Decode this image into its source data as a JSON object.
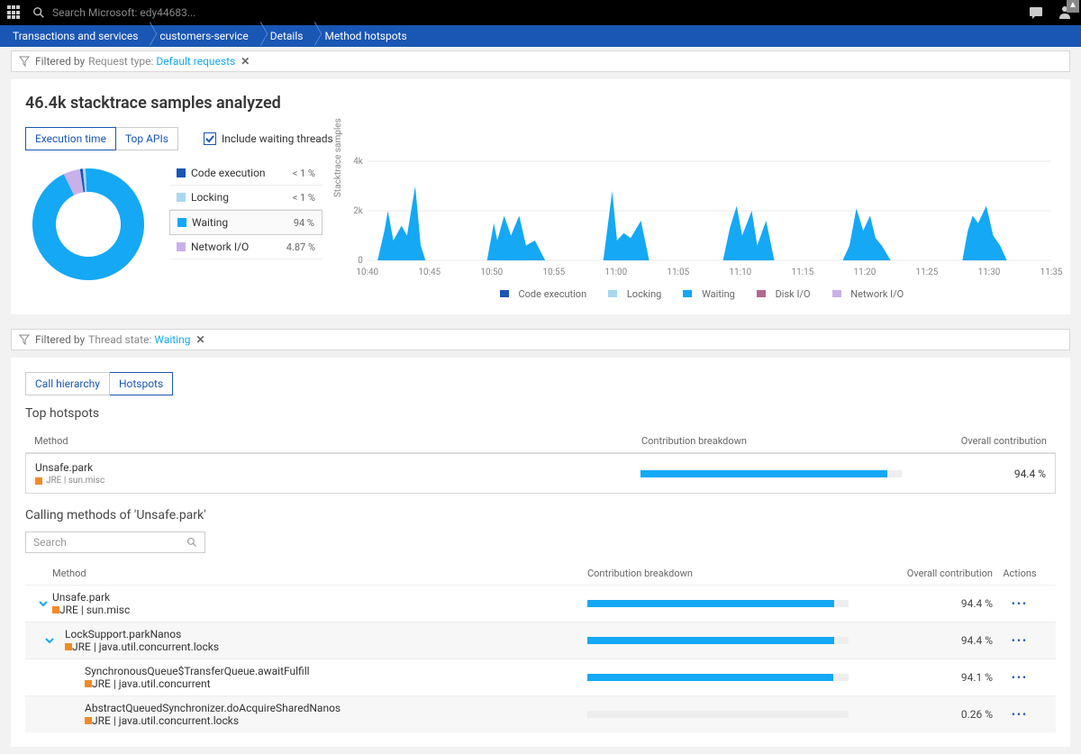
{
  "topbar": {
    "search_placeholder": "Search Microsoft: edy44683..."
  },
  "breadcrumbs": [
    "Transactions and services",
    "customers-service",
    "Details",
    "Method hotspots"
  ],
  "filter1": {
    "prefix": "Filtered by",
    "name": "Request type:",
    "value": "Default requests"
  },
  "page_title": "46.4k stacktrace samples analyzed",
  "tabs": {
    "execution": "Execution time",
    "topapis": "Top APIs"
  },
  "include_waiting_label": "Include waiting threads",
  "donut": {
    "values": [
      0.8,
      0.8,
      94,
      4.87
    ],
    "colors": [
      "#1a56b4",
      "#a8d8f0",
      "#14a8f5",
      "#c8b0e8"
    ],
    "background": "#fff"
  },
  "legend_items": [
    {
      "label": "Code execution",
      "pct": "< 1 %",
      "color": "#1a56b4"
    },
    {
      "label": "Locking",
      "pct": "< 1 %",
      "color": "#a8d8f0"
    },
    {
      "label": "Waiting",
      "pct": "94 %",
      "color": "#14a8f5",
      "selected": true
    },
    {
      "label": "Network I/O",
      "pct": "4.87 %",
      "color": "#c8b0e8"
    }
  ],
  "timeline": {
    "y_label": "Stacktrace samples",
    "y_ticks": [
      "0",
      "2k",
      "4k"
    ],
    "y_max": 4000,
    "x_labels": [
      "10:40",
      "10:45",
      "10:50",
      "10:55",
      "11:00",
      "11:05",
      "11:10",
      "11:15",
      "11:20",
      "11:25",
      "11:30",
      "11:35"
    ],
    "area_color": "#14a8f5",
    "grid_color": "#e8e8e8",
    "pink_color": "#e8a8d8",
    "peaks": [
      [
        [
          0.015,
          0
        ],
        [
          0.025,
          1200
        ],
        [
          0.03,
          2000
        ],
        [
          0.038,
          800
        ],
        [
          0.05,
          1400
        ],
        [
          0.058,
          1000
        ],
        [
          0.07,
          3000
        ],
        [
          0.078,
          600
        ],
        [
          0.085,
          0
        ]
      ],
      [
        [
          0.175,
          0
        ],
        [
          0.185,
          1500
        ],
        [
          0.19,
          800
        ],
        [
          0.2,
          1800
        ],
        [
          0.21,
          1000
        ],
        [
          0.222,
          1800
        ],
        [
          0.232,
          600
        ],
        [
          0.245,
          800
        ],
        [
          0.26,
          0
        ]
      ],
      [
        [
          0.345,
          0
        ],
        [
          0.358,
          2800
        ],
        [
          0.365,
          800
        ],
        [
          0.375,
          1100
        ],
        [
          0.385,
          900
        ],
        [
          0.4,
          1600
        ],
        [
          0.412,
          0
        ]
      ],
      [
        [
          0.52,
          0
        ],
        [
          0.53,
          1300
        ],
        [
          0.54,
          2200
        ],
        [
          0.548,
          1000
        ],
        [
          0.562,
          2000
        ],
        [
          0.57,
          600
        ],
        [
          0.583,
          1600
        ],
        [
          0.595,
          0
        ]
      ],
      [
        [
          0.695,
          0
        ],
        [
          0.705,
          600
        ],
        [
          0.715,
          2100
        ],
        [
          0.725,
          1200
        ],
        [
          0.735,
          1800
        ],
        [
          0.743,
          900
        ],
        [
          0.752,
          600
        ],
        [
          0.765,
          0
        ]
      ],
      [
        [
          0.87,
          0
        ],
        [
          0.878,
          1200
        ],
        [
          0.885,
          1800
        ],
        [
          0.893,
          1500
        ],
        [
          0.905,
          2200
        ],
        [
          0.915,
          1000
        ],
        [
          0.925,
          600
        ],
        [
          0.935,
          0
        ]
      ]
    ],
    "pink_peaks": [
      [
        [
          0.03,
          0
        ],
        [
          0.06,
          160
        ],
        [
          0.085,
          0
        ]
      ],
      [
        [
          0.19,
          0
        ],
        [
          0.22,
          120
        ],
        [
          0.255,
          0
        ]
      ],
      [
        [
          0.36,
          0
        ],
        [
          0.38,
          140
        ],
        [
          0.405,
          0
        ]
      ],
      [
        [
          0.53,
          0
        ],
        [
          0.56,
          130
        ],
        [
          0.59,
          0
        ]
      ],
      [
        [
          0.71,
          0
        ],
        [
          0.735,
          120
        ],
        [
          0.76,
          0
        ]
      ],
      [
        [
          0.88,
          0
        ],
        [
          0.91,
          140
        ],
        [
          0.93,
          0
        ]
      ]
    ]
  },
  "timeline_legend": [
    {
      "label": "Code execution",
      "color": "#1a56b4"
    },
    {
      "label": "Locking",
      "color": "#a8d8f0"
    },
    {
      "label": "Waiting",
      "color": "#14a8f5"
    },
    {
      "label": "Disk I/O",
      "color": "#b06890"
    },
    {
      "label": "Network I/O",
      "color": "#c8b0e8"
    }
  ],
  "filter2": {
    "prefix": "Filtered by",
    "name": "Thread state:",
    "value": "Waiting"
  },
  "view_tabs": {
    "call_hierarchy": "Call hierarchy",
    "hotspots": "Hotspots"
  },
  "top_hotspots_title": "Top hotspots",
  "hotspot_headers": {
    "method": "Method",
    "contrib": "Contribution breakdown",
    "overall": "Overall contribution"
  },
  "top_hotspot": {
    "name": "Unsafe.park",
    "sub": "JRE | sun.misc",
    "pct": "94.4 %",
    "pct_val": 94.4
  },
  "calling_title": "Calling methods of 'Unsafe.park'",
  "search_placeholder": "Search",
  "call_headers": {
    "method": "Method",
    "contrib": "Contribution breakdown",
    "overall": "Overall contribution",
    "actions": "Actions"
  },
  "call_rows": [
    {
      "name": "Unsafe.park",
      "sub": "JRE | sun.misc",
      "pct": "94.4 %",
      "pct_val": 94.4,
      "indent": 0,
      "expanded": true
    },
    {
      "name": "LockSupport.parkNanos",
      "sub": "JRE | java.util.concurrent.locks",
      "pct": "94.4 %",
      "pct_val": 94.4,
      "indent": 1,
      "expanded": true,
      "alt": true
    },
    {
      "name": "SynchronousQueue$TransferQueue.awaitFulfill",
      "sub": "JRE | java.util.concurrent",
      "pct": "94.1 %",
      "pct_val": 94.1,
      "indent": 2,
      "expanded": false
    },
    {
      "name": "AbstractQueuedSynchronizer.doAcquireSharedNanos",
      "sub": "JRE | java.util.concurrent.locks",
      "pct": "0.26 %",
      "pct_val": 0.26,
      "indent": 2,
      "expanded": false,
      "alt": true,
      "gray": true
    }
  ],
  "bar_color": "#14a8f5",
  "bar_track_color": "#eee"
}
